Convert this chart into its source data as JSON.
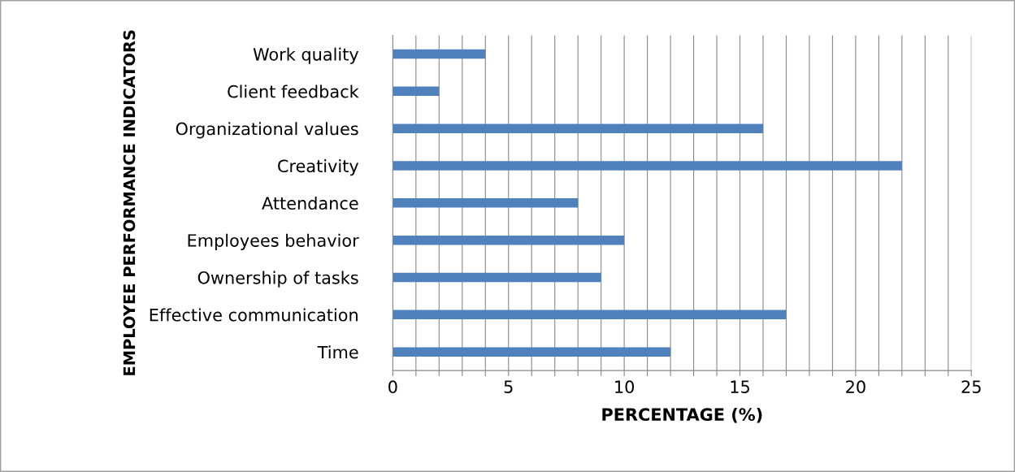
{
  "chart_data": {
    "type": "bar",
    "orientation": "horizontal",
    "xlabel": "PERCENTAGE (%)",
    "ylabel": "EMPLOYEE PERFORMANCE INDICATORS",
    "categories": [
      "Work quality",
      "Client feedback",
      "Organizational values",
      "Creativity",
      "Attendance",
      "Employees behavior",
      "Ownership of tasks",
      "Effective communication",
      "Time"
    ],
    "values": [
      4,
      2,
      16,
      22,
      8,
      10,
      9,
      17,
      12
    ],
    "color": "#4f81bd",
    "xlim": [
      0,
      25
    ],
    "xticks": [
      0,
      {
        "value": 1,
        "label": null
      },
      {
        "value": 2,
        "label": null
      },
      {
        "value": 3,
        "label": null
      },
      {
        "value": 4,
        "label": null
      },
      5,
      {
        "value": 6,
        "label": null
      },
      {
        "value": 7,
        "label": null
      },
      {
        "value": 8,
        "label": null
      },
      {
        "value": 9,
        "label": null
      },
      10,
      {
        "value": 11,
        "label": null
      },
      {
        "value": 12,
        "label": null
      },
      {
        "value": 13,
        "label": null
      },
      {
        "value": 14,
        "label": null
      },
      15,
      {
        "value": 16,
        "label": null
      },
      {
        "value": 17,
        "label": null
      },
      {
        "value": 18,
        "label": null
      },
      {
        "value": 19,
        "label": null
      },
      20,
      {
        "value": 21,
        "label": null
      },
      {
        "value": 22,
        "label": null
      },
      {
        "value": 23,
        "label": null
      },
      {
        "value": 24,
        "label": null
      },
      25
    ],
    "grid": "x",
    "legend": false
  }
}
